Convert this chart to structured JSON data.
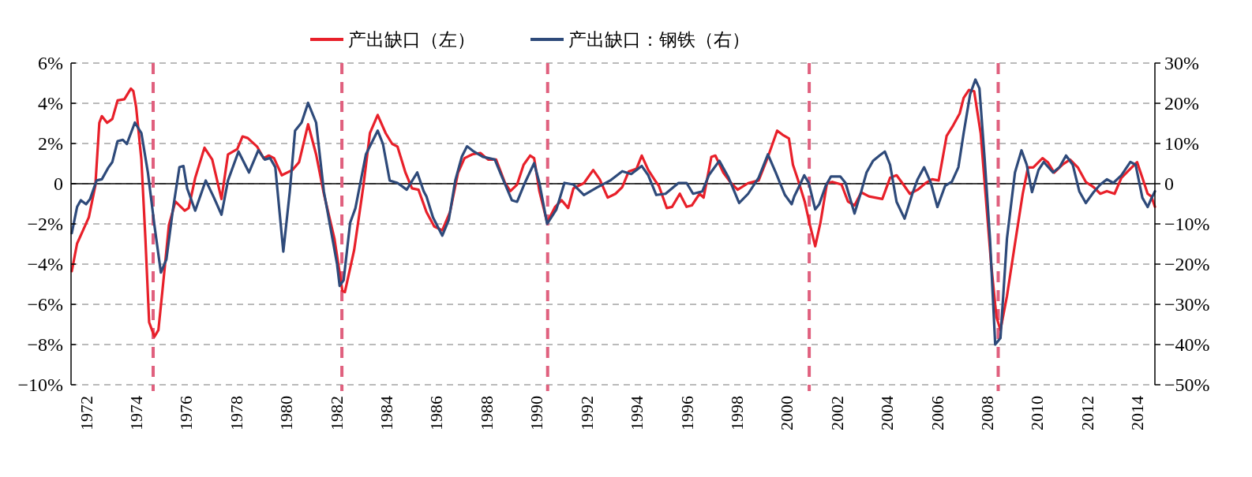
{
  "chart_data": {
    "type": "line",
    "xlim": [
      1971.4,
      2014.7
    ],
    "xticks": [
      1972,
      1974,
      1976,
      1978,
      1980,
      1982,
      1984,
      1986,
      1988,
      1990,
      1992,
      1994,
      1996,
      1998,
      2000,
      2002,
      2004,
      2006,
      2008,
      2010,
      2012,
      2014
    ],
    "ylim": [
      -10,
      6
    ],
    "yticks": [
      {
        "value": 6,
        "label": "6%"
      },
      {
        "value": 4,
        "label": "4%"
      },
      {
        "value": 2,
        "label": "2%"
      },
      0,
      {
        "value": -2,
        "label": "−2%"
      },
      {
        "value": -4,
        "label": "−4%"
      },
      {
        "value": -6,
        "label": "−6%"
      },
      {
        "value": -8,
        "label": "−8%"
      },
      {
        "value": -10,
        "label": "−10%"
      }
    ],
    "y2lim": [
      -50,
      30
    ],
    "y2ticks": [
      {
        "value": 30,
        "label": "30%"
      },
      {
        "value": 20,
        "label": "20%"
      },
      {
        "value": 10,
        "label": "10%"
      },
      0,
      {
        "value": -10,
        "label": "−10%"
      },
      {
        "value": -20,
        "label": "−20%"
      },
      {
        "value": -30,
        "label": "−30%"
      },
      {
        "value": -40,
        "label": "−40%"
      },
      {
        "value": -50,
        "label": "−50%"
      }
    ],
    "grid": "y",
    "legend": "top",
    "line_style": "solid",
    "marker": "none",
    "ref_lines": [
      {
        "axis": "y",
        "value": 0,
        "color": "#000000",
        "line_style": "solid"
      },
      {
        "axis": "x",
        "value": 1974.68,
        "color": "#e0607e",
        "line_style": "dashed"
      },
      {
        "axis": "x",
        "value": 1982.22,
        "color": "#e0607e",
        "line_style": "dashed"
      },
      {
        "axis": "x",
        "value": 1990.44,
        "color": "#e0607e",
        "line_style": "dashed"
      },
      {
        "axis": "x",
        "value": 2000.89,
        "color": "#e0607e",
        "line_style": "dashed"
      },
      {
        "axis": "x",
        "value": 2008.44,
        "color": "#e0607e",
        "line_style": "dashed"
      }
    ],
    "series": [
      {
        "name": "产出缺口（左）",
        "color": "#e8202a",
        "x": [
          1971.43,
          1971.64,
          1971.9,
          1972.11,
          1972.37,
          1972.53,
          1972.63,
          1972.84,
          1973.05,
          1973.26,
          1973.53,
          1973.79,
          1973.89,
          1974.0,
          1974.21,
          1974.37,
          1974.52,
          1974.73,
          1974.89,
          1975.05,
          1975.31,
          1975.57,
          1975.94,
          1976.1,
          1976.36,
          1976.73,
          1977.04,
          1977.41,
          1977.67,
          1978.04,
          1978.25,
          1978.46,
          1978.83,
          1979.09,
          1979.3,
          1979.51,
          1979.82,
          1980.24,
          1980.51,
          1980.87,
          1981.19,
          1981.5,
          1981.92,
          1982.24,
          1982.34,
          1982.71,
          1983.08,
          1983.34,
          1983.65,
          1983.97,
          1984.23,
          1984.44,
          1984.76,
          1985.02,
          1985.28,
          1985.6,
          1985.91,
          1986.23,
          1986.54,
          1986.86,
          1987.12,
          1987.43,
          1987.75,
          1988.06,
          1988.38,
          1988.74,
          1988.95,
          1989.22,
          1989.48,
          1989.74,
          1989.9,
          1990.11,
          1990.42,
          1990.74,
          1991.0,
          1991.26,
          1991.47,
          1991.89,
          1992.26,
          1992.52,
          1992.84,
          1993.15,
          1993.42,
          1993.68,
          1993.99,
          1994.2,
          1994.46,
          1994.73,
          1994.88,
          1995.2,
          1995.41,
          1995.72,
          1995.99,
          1996.2,
          1996.51,
          1996.67,
          1996.98,
          1997.14,
          1997.46,
          1997.77,
          1998.03,
          1998.45,
          1998.87,
          1999.24,
          1999.61,
          1999.82,
          2000.08,
          2000.24,
          2000.45,
          2000.71,
          2000.92,
          2001.13,
          2001.34,
          2001.6,
          2001.81,
          2002.18,
          2002.44,
          2002.7,
          2002.97,
          2003.28,
          2003.81,
          2004.12,
          2004.38,
          2004.65,
          2004.91,
          2005.22,
          2005.54,
          2005.8,
          2006.06,
          2006.38,
          2006.64,
          2006.9,
          2007.06,
          2007.27,
          2007.48,
          2007.74,
          2007.95,
          2008.16,
          2008.37,
          2008.53,
          2008.79,
          2009.11,
          2009.42,
          2009.63,
          2009.84,
          2010.21,
          2010.42,
          2010.68,
          2011.0,
          2011.31,
          2011.62,
          2011.94,
          2012.25,
          2012.52,
          2012.78,
          2013.09,
          2013.36,
          2013.67,
          2013.99,
          2014.2,
          2014.41,
          2014.56,
          2014.7
        ],
        "values": [
          -4.35,
          -2.98,
          -2.26,
          -1.67,
          -0.1,
          3.03,
          3.36,
          3.03,
          3.22,
          4.14,
          4.2,
          4.73,
          4.6,
          3.81,
          1.2,
          -2.72,
          -6.89,
          -7.61,
          -7.28,
          -5.33,
          -2.06,
          -0.89,
          -1.34,
          -1.21,
          0.29,
          1.79,
          1.2,
          -0.76,
          1.46,
          1.72,
          2.35,
          2.27,
          1.85,
          1.27,
          1.4,
          1.27,
          0.42,
          0.68,
          1.07,
          2.96,
          1.46,
          -0.5,
          -2.72,
          -5.33,
          -5.39,
          -3.3,
          -0.1,
          2.51,
          3.42,
          2.51,
          1.98,
          1.85,
          0.55,
          -0.23,
          -0.3,
          -1.41,
          -2.13,
          -2.32,
          -1.41,
          0.55,
          1.27,
          1.46,
          1.53,
          1.2,
          1.2,
          0.03,
          -0.37,
          -0.04,
          0.94,
          1.4,
          1.27,
          -0.37,
          -1.93,
          -1.15,
          -0.82,
          -1.21,
          -0.23,
          0.03,
          0.68,
          0.22,
          -0.69,
          -0.5,
          -0.17,
          0.61,
          0.74,
          1.4,
          0.68,
          0.16,
          -0.1,
          -1.21,
          -1.15,
          -0.5,
          -1.15,
          -1.08,
          -0.5,
          -0.69,
          1.33,
          1.4,
          0.55,
          0.03,
          -0.3,
          0.03,
          0.16,
          1.33,
          2.64,
          2.44,
          2.25,
          0.94,
          0.16,
          -0.89,
          -2.06,
          -3.11,
          -1.93,
          0.03,
          0.09,
          -0.04,
          -0.89,
          -1.08,
          -0.43,
          -0.63,
          -0.76,
          0.29,
          0.42,
          -0.04,
          -0.5,
          -0.3,
          0.03,
          0.22,
          0.16,
          2.38,
          2.9,
          3.49,
          4.27,
          4.66,
          4.6,
          2.51,
          -0.76,
          -4.02,
          -6.63,
          -7.28,
          -5.59,
          -2.98,
          -0.5,
          0.81,
          0.81,
          1.27,
          1.07,
          0.55,
          0.94,
          1.2,
          0.81,
          0.09,
          -0.17,
          -0.5,
          -0.37,
          -0.5,
          0.29,
          0.68,
          1.07,
          0.29,
          -0.5,
          -0.63,
          -1.15
        ]
      },
      {
        "name": "产出缺口：钢铁（右）",
        "color": "#2e4a7a",
        "axis": "y2",
        "x": [
          1971.43,
          1971.64,
          1971.79,
          1972.0,
          1972.16,
          1972.42,
          1972.63,
          1972.9,
          1973.05,
          1973.26,
          1973.47,
          1973.63,
          1973.95,
          1974.21,
          1974.47,
          1974.73,
          1974.99,
          1975.21,
          1975.47,
          1975.73,
          1975.89,
          1976.04,
          1976.36,
          1976.78,
          1977.09,
          1977.41,
          1977.67,
          1978.09,
          1978.51,
          1978.88,
          1979.14,
          1979.35,
          1979.56,
          1979.88,
          1980.14,
          1980.35,
          1980.61,
          1980.87,
          1981.19,
          1981.5,
          1982.03,
          1982.13,
          1982.29,
          1982.55,
          1982.76,
          1983.18,
          1983.65,
          1983.86,
          1984.13,
          1984.44,
          1984.81,
          1985.23,
          1985.49,
          1985.6,
          1985.86,
          1986.23,
          1986.49,
          1986.75,
          1987.01,
          1987.22,
          1987.49,
          1987.85,
          1988.33,
          1988.59,
          1989.01,
          1989.22,
          1989.53,
          1989.9,
          1990.11,
          1990.42,
          1990.79,
          1991.11,
          1991.47,
          1991.89,
          1992.42,
          1992.94,
          1993.42,
          1993.78,
          1994.2,
          1994.46,
          1994.78,
          1995.15,
          1995.67,
          1995.99,
          1996.25,
          1996.62,
          1996.88,
          1997.3,
          1997.67,
          1998.09,
          1998.45,
          1998.87,
          1999.24,
          1999.55,
          1999.92,
          2000.19,
          2000.29,
          2000.5,
          2000.69,
          2000.87,
          2001.13,
          2001.29,
          2001.55,
          2001.76,
          2002.13,
          2002.34,
          2002.7,
          2002.97,
          2003.18,
          2003.44,
          2003.7,
          2003.91,
          2004.12,
          2004.38,
          2004.7,
          2005.01,
          2005.22,
          2005.48,
          2005.75,
          2006.01,
          2006.32,
          2006.59,
          2006.85,
          2007.06,
          2007.32,
          2007.53,
          2007.69,
          2007.9,
          2008.11,
          2008.32,
          2008.53,
          2008.79,
          2009.11,
          2009.37,
          2009.58,
          2009.79,
          2010.05,
          2010.26,
          2010.63,
          2010.89,
          2011.15,
          2011.42,
          2011.68,
          2011.94,
          2012.25,
          2012.52,
          2012.78,
          2013.04,
          2013.36,
          2013.72,
          2013.93,
          2014.2,
          2014.41,
          2014.55,
          2014.7
        ],
        "values": [
          -12.3,
          -5.8,
          -4.1,
          -5.1,
          -3.8,
          0.8,
          1.1,
          4.1,
          5.4,
          10.6,
          10.9,
          9.9,
          15.2,
          12.6,
          2.8,
          -10.3,
          -22.1,
          -18.8,
          -6.4,
          4.1,
          4.4,
          -1.2,
          -6.7,
          0.8,
          -3.2,
          -7.7,
          0.8,
          8.0,
          2.8,
          8.3,
          6.0,
          6.4,
          4.1,
          -16.9,
          -1.9,
          13.2,
          15.2,
          20.1,
          15.2,
          -1.9,
          -20.1,
          -25.4,
          -24.0,
          -9.7,
          -6.1,
          7.3,
          13.2,
          9.9,
          0.8,
          0.2,
          -1.5,
          2.8,
          -1.9,
          -3.2,
          -8.4,
          -12.9,
          -9.0,
          0.8,
          6.7,
          9.3,
          8.0,
          6.7,
          6.0,
          2.1,
          -4.1,
          -4.5,
          0.2,
          5.1,
          0.2,
          -10.0,
          -6.4,
          0.2,
          -0.2,
          -2.8,
          -0.9,
          0.8,
          3.1,
          2.4,
          4.4,
          2.1,
          -2.8,
          -2.5,
          0.2,
          0.2,
          -2.5,
          -1.9,
          2.1,
          5.7,
          1.5,
          -4.8,
          -2.5,
          1.5,
          7.3,
          2.8,
          -2.8,
          -5.1,
          -3.2,
          -0.5,
          2.1,
          0.2,
          -6.4,
          -5.1,
          -0.5,
          1.8,
          1.8,
          0.2,
          -7.4,
          -1.9,
          2.8,
          5.7,
          7.0,
          8.0,
          4.7,
          -4.5,
          -8.7,
          -2.5,
          1.1,
          4.1,
          0.2,
          -5.8,
          -0.5,
          0.5,
          4.1,
          12.6,
          22.3,
          25.9,
          23.7,
          6.0,
          -13.6,
          -40.0,
          -38.4,
          -13.6,
          2.8,
          8.3,
          4.7,
          -2.1,
          3.4,
          5.4,
          2.8,
          4.1,
          7.0,
          4.7,
          -1.9,
          -4.8,
          -2.1,
          -0.2,
          1.1,
          0.2,
          2.1,
          5.4,
          4.7,
          -3.5,
          -5.8,
          -3.8,
          -1.9
        ]
      }
    ]
  }
}
